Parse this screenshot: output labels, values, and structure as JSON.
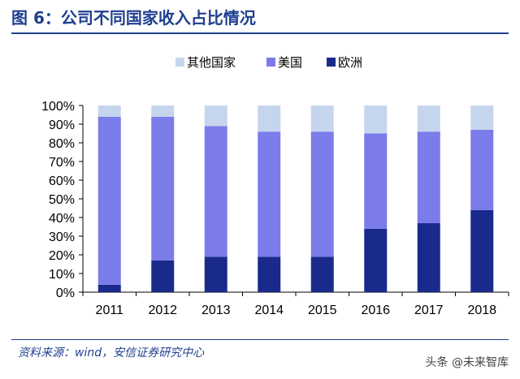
{
  "header": {
    "title": "图 6：公司不同国家收入占比情况"
  },
  "footer": {
    "source": "资料来源：wind，安信证券研究中心",
    "watermark": "头条 @未来智库"
  },
  "colors": {
    "other": "#C6D5EE",
    "us": "#7B7BEA",
    "europe": "#1A2A8C",
    "accent": "#1F3F8F"
  },
  "chart_data": {
    "type": "bar",
    "stacked": true,
    "normalized": true,
    "categories": [
      "2011",
      "2012",
      "2013",
      "2014",
      "2015",
      "2016",
      "2017",
      "2018"
    ],
    "series": [
      {
        "name": "欧洲",
        "values": [
          4,
          17,
          19,
          19,
          19,
          34,
          37,
          44
        ]
      },
      {
        "name": "美国",
        "values": [
          90,
          77,
          70,
          67,
          67,
          51,
          49,
          43
        ]
      },
      {
        "name": "其他国家",
        "values": [
          6,
          6,
          11,
          14,
          14,
          15,
          14,
          13
        ]
      }
    ],
    "legend_order": [
      "其他国家",
      "美国",
      "欧洲"
    ],
    "legend_position": "top",
    "ylim": [
      0,
      100
    ],
    "ytick_labels": [
      "0%",
      "10%",
      "20%",
      "30%",
      "40%",
      "50%",
      "60%",
      "70%",
      "80%",
      "90%",
      "100%"
    ],
    "grid": false
  }
}
